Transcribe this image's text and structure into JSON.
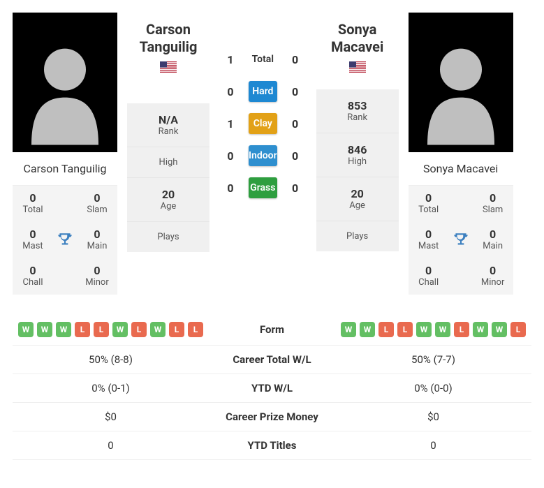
{
  "player1": {
    "name": "Carson Tanguilig",
    "flag": "us",
    "rank": "N/A",
    "high": "",
    "age": "20",
    "plays": "",
    "titles": {
      "total": "0",
      "slam": "0",
      "mast": "0",
      "main": "0",
      "chall": "0",
      "minor": "0"
    },
    "form": [
      "W",
      "W",
      "W",
      "L",
      "L",
      "W",
      "L",
      "W",
      "L",
      "L"
    ],
    "career_total": "50% (8-8)",
    "ytd_wl": "0% (0-1)",
    "prize": "$0",
    "ytd_titles": "0"
  },
  "player2": {
    "name": "Sonya Macavei",
    "flag": "us",
    "rank": "853",
    "high": "846",
    "age": "20",
    "plays": "",
    "titles": {
      "total": "0",
      "slam": "0",
      "mast": "0",
      "main": "0",
      "chall": "0",
      "minor": "0"
    },
    "form": [
      "W",
      "W",
      "L",
      "L",
      "W",
      "W",
      "L",
      "W",
      "W",
      "L"
    ],
    "career_total": "50% (7-7)",
    "ytd_wl": "0% (0-0)",
    "prize": "$0",
    "ytd_titles": "0"
  },
  "h2h": {
    "total": {
      "p1": "1",
      "p2": "0",
      "label": "Total"
    },
    "hard": {
      "p1": "0",
      "p2": "0",
      "label": "Hard"
    },
    "clay": {
      "p1": "1",
      "p2": "0",
      "label": "Clay"
    },
    "indoor": {
      "p1": "0",
      "p2": "0",
      "label": "Indoor"
    },
    "grass": {
      "p1": "0",
      "p2": "0",
      "label": "Grass"
    }
  },
  "labels": {
    "rank": "Rank",
    "high": "High",
    "age": "Age",
    "plays": "Plays",
    "total": "Total",
    "slam": "Slam",
    "mast": "Mast",
    "main": "Main",
    "chall": "Chall",
    "minor": "Minor",
    "form": "Form",
    "career_total": "Career Total W/L",
    "ytd_wl": "YTD W/L",
    "prize": "Career Prize Money",
    "ytd_titles": "YTD Titles"
  },
  "colors": {
    "hard": "#1e88d2",
    "clay": "#e2a117",
    "indoor": "#2e8fcf",
    "grass": "#2e9e3f",
    "win": "#63bf63",
    "loss": "#e96a4f",
    "trophy": "#3b7fbf"
  }
}
